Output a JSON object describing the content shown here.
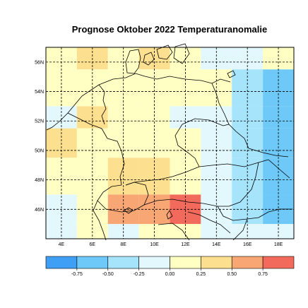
{
  "title": "Prognose Oktober 2022 Temperaturanomalie",
  "lat_labels": [
    "56N",
    "54N",
    "52N",
    "50N",
    "48N",
    "46N"
  ],
  "lon_labels": [
    "4E",
    "6E",
    "8E",
    "10E",
    "12E",
    "14E",
    "16E",
    "18E"
  ],
  "colorbar": {
    "tick_labels": [
      "-0.75",
      "-0.50",
      "-0.25",
      "0.00",
      "0.25",
      "0.50",
      "0.75"
    ],
    "colors": [
      "#3f9ff5",
      "#6ec9f8",
      "#a5e4fb",
      "#e2f8fd",
      "#ffffc3",
      "#fde08f",
      "#f8a774",
      "#f26a5b"
    ]
  },
  "grid": {
    "lon_range": [
      3,
      19
    ],
    "lat_range": [
      44,
      57
    ],
    "columns": [
      "3-5E",
      "5-7E",
      "7-9E",
      "9-11E",
      "11-13E",
      "13-15E",
      "15-17E",
      "17-19E"
    ],
    "rows_from_north": [
      [
        "ffffc3",
        "fde08f",
        "ffffc3",
        "fde08f",
        "ffffc3",
        "e2f8fd",
        "e2f8fd",
        "ffffc3"
      ],
      [
        "ffffc3",
        "ffffc3",
        "ffffc3",
        "ffffc3",
        "ffffc3",
        "ffffc3",
        "a5e4fb",
        "6ec9f8"
      ],
      [
        "e2f8fd",
        "fde08f",
        "ffffc3",
        "ffffc3",
        "e2f8fd",
        "e2f8fd",
        "a5e4fb",
        "6ec9f8"
      ],
      [
        "fde08f",
        "ffffc3",
        "ffffc3",
        "ffffc3",
        "ffffc3",
        "e2f8fd",
        "a5e4fb",
        "6ec9f8"
      ],
      [
        "ffffc3",
        "ffffc3",
        "fde08f",
        "fde08f",
        "ffffc3",
        "e2f8fd",
        "a5e4fb",
        "6ec9f8"
      ],
      [
        "e2f8fd",
        "ffffc3",
        "f8a774",
        "f8a774",
        "f26a5b",
        "e2f8fd",
        "a5e4fb",
        "6ec9f8"
      ],
      [
        "e2f8fd",
        "ffffc3",
        "e2f8fd",
        "ffffc3",
        "ffffc3",
        "e2f8fd",
        "e2f8fd",
        "e2f8fd"
      ]
    ]
  }
}
